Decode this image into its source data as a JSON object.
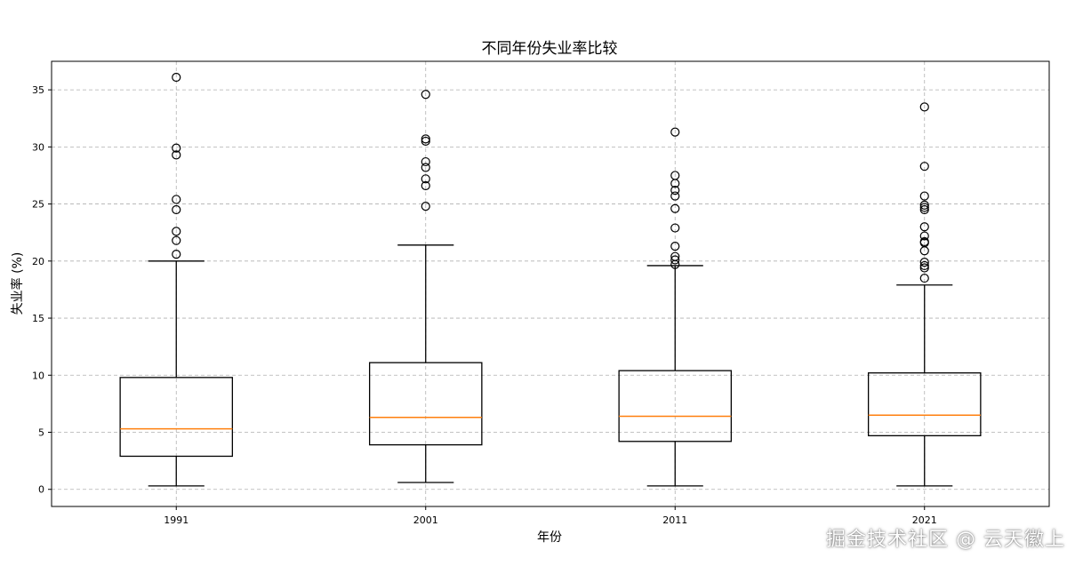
{
  "watermark": "掘金技术社区 @ 云天徽上",
  "colors": {
    "box": "#000000",
    "median": "#ff7f0e",
    "grid": "#b0b0b0",
    "flier": "#000000"
  },
  "chart_data": {
    "type": "boxplot",
    "title": "不同年份失业率比较",
    "xlabel": "年份",
    "ylabel": "失业率 (%)",
    "ylim": [
      -1.5,
      37.5
    ],
    "yticks": [
      0,
      5,
      10,
      15,
      20,
      25,
      30,
      35
    ],
    "grid": true,
    "categories": [
      "1991",
      "2001",
      "2011",
      "2021"
    ],
    "boxes": [
      {
        "whisker_low": 0.3,
        "q1": 2.9,
        "median": 5.3,
        "q3": 9.8,
        "whisker_high": 20.0,
        "outliers": [
          20.6,
          21.8,
          22.6,
          24.5,
          25.4,
          29.3,
          29.9,
          36.1
        ]
      },
      {
        "whisker_low": 0.6,
        "q1": 3.9,
        "median": 6.3,
        "q3": 11.1,
        "whisker_high": 21.4,
        "outliers": [
          24.8,
          26.6,
          27.2,
          28.2,
          28.7,
          30.5,
          30.7,
          34.6
        ]
      },
      {
        "whisker_low": 0.3,
        "q1": 4.2,
        "median": 6.4,
        "q3": 10.4,
        "whisker_high": 19.6,
        "outliers": [
          19.7,
          20.1,
          20.4,
          21.3,
          22.9,
          24.6,
          25.7,
          26.2,
          26.8,
          27.5,
          31.3
        ]
      },
      {
        "whisker_low": 0.3,
        "q1": 4.7,
        "median": 6.5,
        "q3": 10.2,
        "whisker_high": 17.9,
        "outliers": [
          18.5,
          19.4,
          19.6,
          19.9,
          20.9,
          21.6,
          21.7,
          22.2,
          23.0,
          24.5,
          24.7,
          24.9,
          25.7,
          28.3,
          33.5
        ]
      }
    ]
  }
}
